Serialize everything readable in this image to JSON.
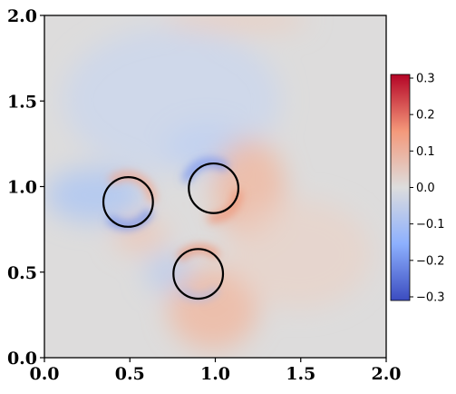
{
  "chart_data": {
    "type": "heatmap",
    "title": "",
    "xlabel": "",
    "ylabel": "",
    "xlim": [
      0.0,
      2.0
    ],
    "ylim": [
      0.0,
      2.0
    ],
    "x_ticks": [
      "0.0",
      "0.5",
      "1.0",
      "1.5",
      "2.0"
    ],
    "y_ticks": [
      "0.0",
      "0.5",
      "1.0",
      "1.5",
      "2.0"
    ],
    "colormap": "coolwarm",
    "colorbar": {
      "range": [
        -0.31,
        0.31
      ],
      "ticks": [
        "0.3",
        "0.2",
        "0.1",
        "0.0",
        "−0.1",
        "−0.2",
        "−0.3"
      ],
      "placement": "right"
    },
    "grid": false,
    "circles": [
      {
        "cx": 0.49,
        "cy": 0.91,
        "r": 0.145
      },
      {
        "cx": 0.99,
        "cy": 0.99,
        "r": 0.145
      },
      {
        "cx": 0.9,
        "cy": 0.49,
        "r": 0.145
      }
    ]
  }
}
